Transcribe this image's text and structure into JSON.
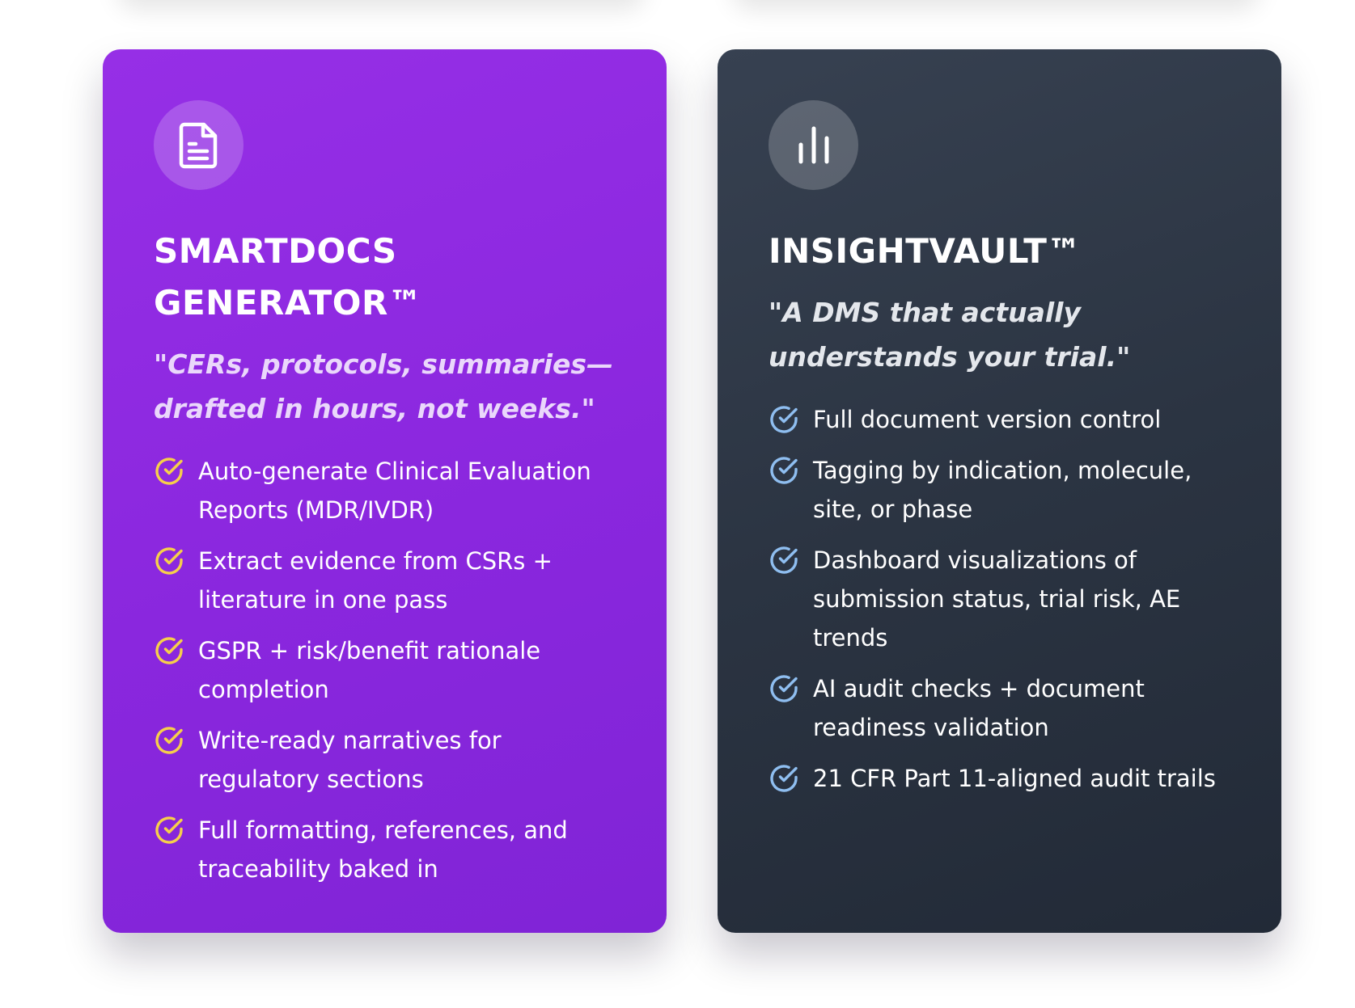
{
  "cards": [
    {
      "icon": "document-icon",
      "title_line1": "SMARTDOCS",
      "title_line2": "GENERATOR™",
      "tagline": "\"CERs, protocols, summaries—drafted in hours, not weeks.\"",
      "check_color": "#f6cf4a",
      "background": "#8f2be2",
      "features": [
        "Auto-generate Clinical Evaluation Reports (MDR/IVDR)",
        "Extract evidence from CSRs + literature in one pass",
        "GSPR + risk/benefit rationale completion",
        "Write-ready narratives for regulatory sections",
        "Full formatting, references, and traceability baked in"
      ]
    },
    {
      "icon": "bar-chart-icon",
      "title_line1": "INSIGHTVAULT™",
      "tagline": "\"A DMS that actually understands your trial.\"",
      "check_color": "#8fbef0",
      "background": "#2d3645",
      "features": [
        "Full document version control",
        "Tagging by indication, molecule, site, or phase",
        "Dashboard visualizations of submission status, trial risk, AE trends",
        "AI audit checks + document readiness validation",
        "21 CFR Part 11-aligned audit trails"
      ]
    }
  ]
}
